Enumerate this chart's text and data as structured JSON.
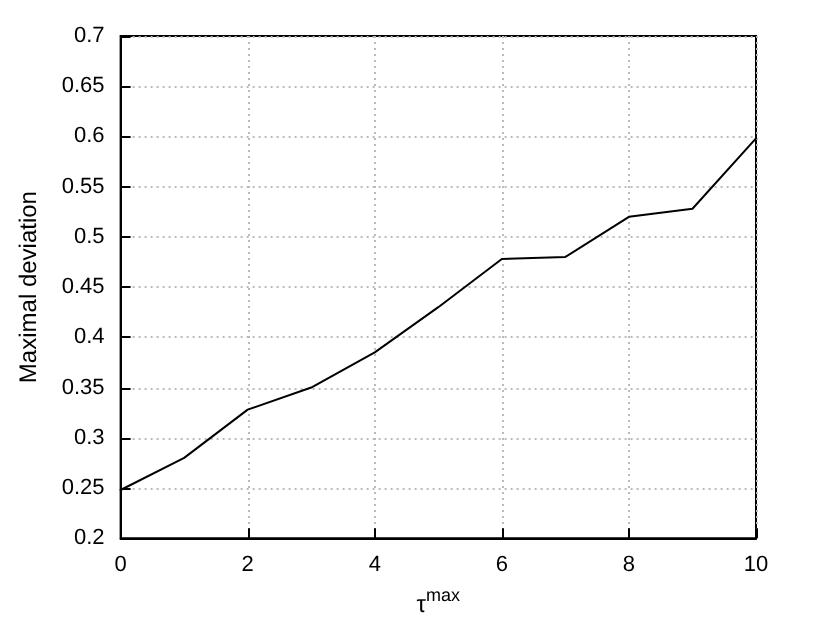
{
  "chart_data": {
    "type": "line",
    "xlabel": "τ$^{max}$",
    "ylabel": "Maximal deviation",
    "x": [
      0,
      1,
      2,
      3,
      4,
      5,
      6,
      7,
      8,
      9,
      10
    ],
    "series": [
      {
        "color": "#000000",
        "values": [
          0.248,
          0.28,
          0.328,
          0.35,
          0.385,
          0.43,
          0.478,
          0.48,
          0.52,
          0.528,
          0.598
        ]
      }
    ],
    "xlim": [
      0,
      10
    ],
    "xticks": [
      0,
      2,
      4,
      6,
      8,
      10
    ],
    "ylim": [
      0.2,
      0.7
    ],
    "yticks": [
      0.2,
      0.25,
      0.3,
      0.35,
      0.4,
      0.45,
      0.5,
      0.55,
      0.6,
      0.65,
      0.7
    ],
    "grid": true,
    "marker": "none",
    "line_style": "solid"
  }
}
